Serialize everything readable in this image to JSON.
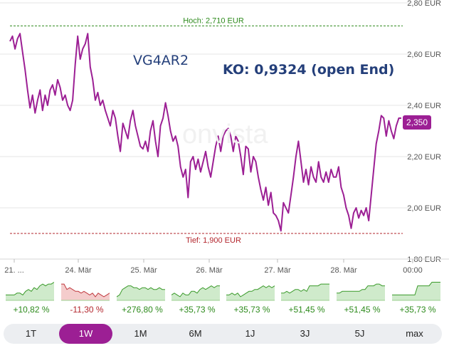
{
  "chart_data": {
    "type": "line",
    "title": "",
    "series": [
      {
        "name": "VG4AR2",
        "color": "#9c1f94",
        "values": [
          2.65,
          2.67,
          2.62,
          2.66,
          2.68,
          2.61,
          2.54,
          2.46,
          2.39,
          2.44,
          2.37,
          2.42,
          2.46,
          2.38,
          2.44,
          2.4,
          2.46,
          2.48,
          2.44,
          2.5,
          2.47,
          2.42,
          2.44,
          2.4,
          2.38,
          2.42,
          2.56,
          2.67,
          2.58,
          2.62,
          2.64,
          2.68,
          2.55,
          2.5,
          2.42,
          2.45,
          2.4,
          2.42,
          2.38,
          2.35,
          2.32,
          2.38,
          2.35,
          2.28,
          2.22,
          2.33,
          2.3,
          2.27,
          2.34,
          2.38,
          2.32,
          2.28,
          2.24,
          2.23,
          2.26,
          2.22,
          2.3,
          2.34,
          2.26,
          2.2,
          2.32,
          2.35,
          2.41,
          2.36,
          2.3,
          2.26,
          2.28,
          2.24,
          2.16,
          2.12,
          2.15,
          2.04,
          2.18,
          2.2,
          2.15,
          2.19,
          2.14,
          2.18,
          2.22,
          2.16,
          2.12,
          2.18,
          2.24,
          2.28,
          2.22,
          2.28,
          2.3,
          2.31,
          2.28,
          2.22,
          2.28,
          2.26,
          2.2,
          2.13,
          2.24,
          2.23,
          2.14,
          2.2,
          2.18,
          2.12,
          2.07,
          2.03,
          2.08,
          2.01,
          2.06,
          1.98,
          1.97,
          1.95,
          1.91,
          2.02,
          2.0,
          1.98,
          2.05,
          2.12,
          2.2,
          2.26,
          2.18,
          2.1,
          2.15,
          2.09,
          2.16,
          2.12,
          2.1,
          2.18,
          2.12,
          2.1,
          2.14,
          2.1,
          2.15,
          2.12,
          2.12,
          2.16,
          2.08,
          2.05,
          2.0,
          1.97,
          1.92,
          1.98,
          2.0,
          1.96,
          1.99,
          1.97,
          2.0,
          1.95,
          2.05,
          2.15,
          2.25,
          2.3,
          2.36,
          2.35,
          2.28,
          2.34,
          2.3,
          2.27,
          2.32,
          2.35,
          2.35
        ]
      }
    ],
    "yticks": [
      1.8,
      2.0,
      2.2,
      2.4,
      2.6,
      2.8
    ],
    "ytick_labels": [
      "1,80 EUR",
      "2,00 EUR",
      "2,20 EUR",
      "2,40 EUR",
      "2,60 EUR",
      "2,80 EUR"
    ],
    "xtick_labels": [
      "21. ...",
      "24. Mär",
      "25. Mär",
      "26. Mär",
      "27. Mär",
      "28. Mär",
      "00:00"
    ],
    "ylim": [
      1.8,
      2.8
    ],
    "hoch": {
      "value": 2.71,
      "label": "Hoch: 2,710 EUR",
      "color": "#2e8b1d"
    },
    "tief": {
      "value": 1.9,
      "label": "Tief: 1,900 EUR",
      "color": "#b3262d"
    },
    "last_price_label": "2,350"
  },
  "overlay": {
    "isin": "VG4AR2",
    "ko": "KO: 0,9324 (open End)",
    "watermark": "onvista"
  },
  "mini_charts": [
    {
      "pct": "+10,82 %",
      "trend": "pos",
      "values": [
        3,
        3,
        3,
        3,
        4,
        4,
        3,
        5,
        6,
        5,
        7,
        6,
        8,
        9,
        8,
        9,
        9,
        10
      ]
    },
    {
      "pct": "-11,30 %",
      "trend": "neg",
      "values": [
        9,
        9,
        6,
        7,
        6,
        5,
        5,
        4,
        5,
        4,
        3,
        4,
        2,
        4,
        3,
        2,
        3,
        4
      ]
    },
    {
      "pct": "+276,80 %",
      "trend": "pos",
      "values": [
        2,
        3,
        6,
        7,
        8,
        8,
        7,
        7,
        6,
        7,
        7,
        6,
        7,
        6,
        6,
        7,
        6,
        6
      ]
    },
    {
      "pct": "+35,73 %",
      "trend": "pos",
      "values": [
        3,
        4,
        3,
        2,
        4,
        3,
        3,
        5,
        5,
        4,
        6,
        7,
        6,
        7,
        8,
        7,
        8,
        8
      ]
    },
    {
      "pct": "+35,73 %",
      "trend": "pos",
      "values": [
        3,
        3,
        4,
        3,
        4,
        2,
        3,
        4,
        5,
        5,
        6,
        6,
        7,
        8,
        7,
        8,
        7,
        8
      ]
    },
    {
      "pct": "+51,45 %",
      "trend": "pos",
      "values": [
        4,
        4,
        5,
        4,
        5,
        6,
        6,
        5,
        6,
        5,
        8,
        8,
        8,
        8,
        9,
        9,
        9,
        9
      ]
    },
    {
      "pct": "+51,45 %",
      "trend": "pos",
      "values": [
        4,
        4,
        5,
        5,
        5,
        5,
        5,
        5,
        5,
        6,
        6,
        8,
        8,
        8,
        9,
        9,
        8,
        8
      ]
    },
    {
      "pct": "+35,73 %",
      "trend": "pos",
      "values": [
        3,
        3,
        3,
        3,
        3,
        3,
        3,
        3,
        3,
        8,
        8,
        8,
        8,
        8,
        10,
        10,
        10,
        10
      ]
    }
  ],
  "periods": [
    {
      "label": "1T",
      "active": false
    },
    {
      "label": "1W",
      "active": true
    },
    {
      "label": "1M",
      "active": false
    },
    {
      "label": "6M",
      "active": false
    },
    {
      "label": "1J",
      "active": false
    },
    {
      "label": "3J",
      "active": false
    },
    {
      "label": "5J",
      "active": false
    },
    {
      "label": "max",
      "active": false
    }
  ]
}
